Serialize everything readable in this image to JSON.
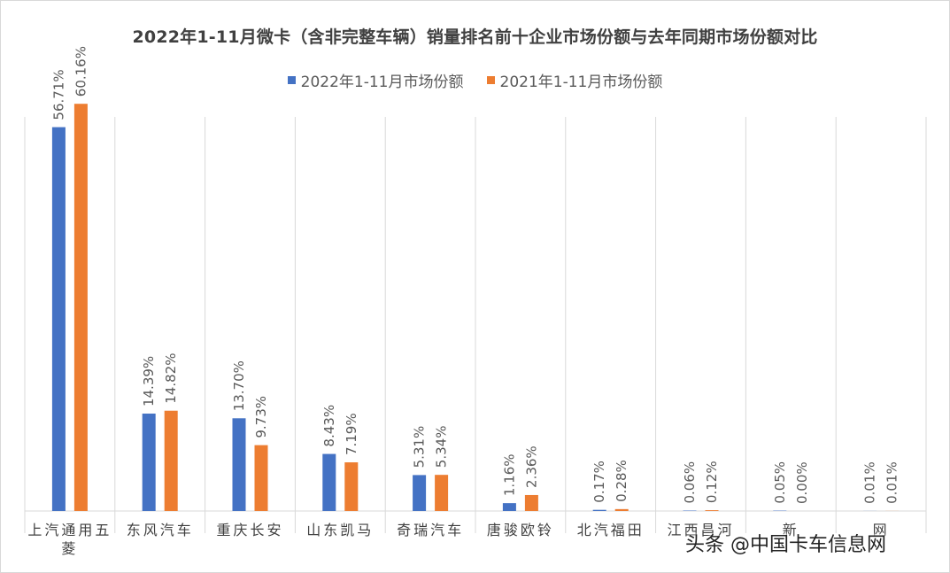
{
  "chart_data": {
    "type": "bar",
    "title": "2022年1-11月微卡（含非完整车辆）销量排名前十企业市场份额与去年同期市场份额对比",
    "categories": [
      "上汽通用五菱",
      "东风汽车",
      "重庆长安",
      "山东凯马",
      "奇瑞汽车",
      "唐骏欧铃",
      "北汽福田",
      "江西昌河",
      "新",
      "网"
    ],
    "series": [
      {
        "name": "2022年1-11月市场份额",
        "color": "#4472c4",
        "values": [
          56.71,
          14.39,
          13.7,
          8.43,
          5.31,
          1.16,
          0.17,
          0.06,
          0.05,
          0.01
        ],
        "labels": [
          "56.71%",
          "14.39%",
          "13.70%",
          "8.43%",
          "5.31%",
          "1.16%",
          "0.17%",
          "0.06%",
          "0.05%",
          "0.01%"
        ]
      },
      {
        "name": "2021年1-11月市场份额",
        "color": "#ed7d31",
        "values": [
          60.16,
          14.82,
          9.73,
          7.19,
          5.34,
          2.36,
          0.28,
          0.12,
          0.0,
          0.01
        ],
        "labels": [
          "60.16%",
          "14.82%",
          "9.73%",
          "7.19%",
          "5.34%",
          "2.36%",
          "0.28%",
          "0.12%",
          "0.00%",
          "0.01%"
        ]
      }
    ],
    "ylim": [
      0,
      70
    ],
    "grid": "vertical category separators",
    "legend_position": "top"
  },
  "watermark": "头条 @中国卡车信息网"
}
